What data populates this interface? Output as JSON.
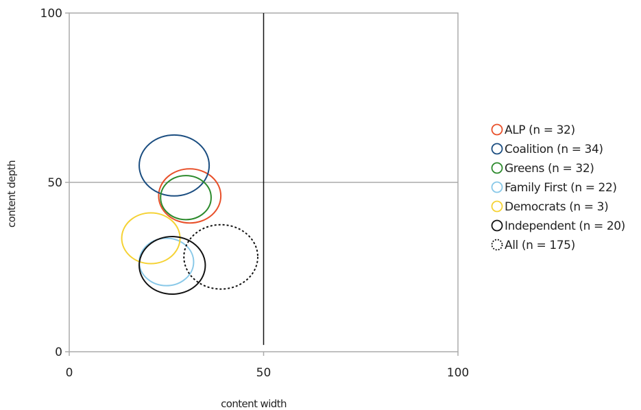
{
  "chart_data": {
    "type": "bubble",
    "xlabel": "content width",
    "ylabel": "content depth",
    "xlim": [
      0,
      100
    ],
    "ylim": [
      0,
      100
    ],
    "xticks": [
      "0",
      "50",
      "100"
    ],
    "yticks": [
      "0",
      "50",
      "100"
    ],
    "gridlines": "x=50, y=50",
    "grid": true,
    "legend_position": "right",
    "series": [
      {
        "name": "ALP",
        "label": "ALP (n = 32)",
        "x": 31,
        "y": 46,
        "r": 8,
        "color": "#e8502a",
        "dashed": false
      },
      {
        "name": "Coalition",
        "label": "Coalition (n = 34)",
        "x": 27,
        "y": 55,
        "r": 9,
        "color": "#1a4d80",
        "dashed": false
      },
      {
        "name": "Greens",
        "label": "Greens (n = 32)",
        "x": 30,
        "y": 45.5,
        "r": 6.5,
        "color": "#2c8a2c",
        "dashed": false
      },
      {
        "name": "Family First",
        "label": "Family First (n = 22)",
        "x": 25,
        "y": 26.5,
        "r": 7,
        "color": "#88c8e8",
        "dashed": false
      },
      {
        "name": "Democrats",
        "label": "Democrats (n = 3)",
        "x": 21,
        "y": 33.5,
        "r": 7.5,
        "color": "#f5d234",
        "dashed": false
      },
      {
        "name": "Independent",
        "label": "Independent (n = 20)",
        "x": 26.5,
        "y": 25.5,
        "r": 8.5,
        "color": "#111111",
        "dashed": false
      },
      {
        "name": "All",
        "label": "All (n = 175)",
        "x": 39,
        "y": 28,
        "r": 9.5,
        "color": "#111111",
        "dashed": true
      }
    ]
  }
}
